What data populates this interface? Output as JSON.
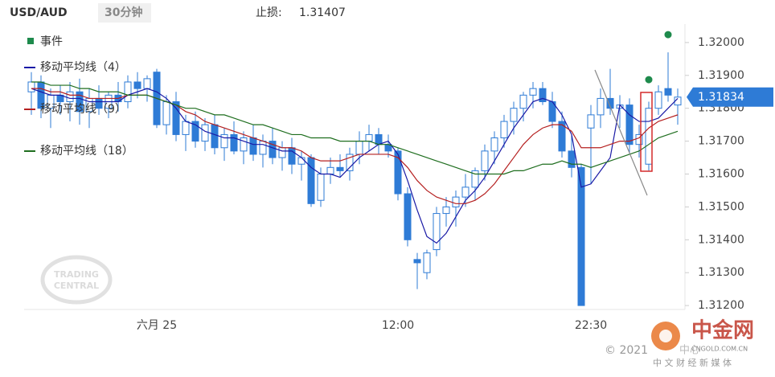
{
  "header": {
    "symbol": "USD/AUD",
    "timeframe": "30分钟",
    "stop_label": "止损:"
  },
  "watermarks": {
    "tc_line1": "TRADING",
    "tc_line2": "CENTRAL",
    "copyright": "© 2021",
    "copyright_tail": "中心",
    "brand": "中金网",
    "brand_url": "CNGOLD.COM.CN",
    "brand_slogan": "中 文 财 经 新 媒 体"
  },
  "chart_data": {
    "type": "candlestick",
    "stop_loss": 1.31407,
    "categories": [
      null,
      null,
      null,
      null,
      null,
      null,
      null,
      null,
      null,
      null,
      null,
      null,
      null,
      "六月 25",
      null,
      null,
      null,
      null,
      null,
      null,
      null,
      null,
      null,
      null,
      null,
      null,
      null,
      null,
      null,
      null,
      null,
      null,
      null,
      null,
      null,
      null,
      null,
      null,
      "12:00",
      null,
      null,
      null,
      null,
      null,
      null,
      null,
      null,
      null,
      null,
      null,
      null,
      null,
      null,
      null,
      null,
      null,
      null,
      null,
      "22:30",
      null,
      null,
      null,
      null,
      null,
      null,
      null,
      null,
      null
    ],
    "open": [
      1.3185,
      1.3188,
      1.318,
      1.3184,
      1.3182,
      1.3185,
      1.3179,
      1.3183,
      1.318,
      1.3184,
      1.3182,
      1.3188,
      1.3186,
      1.3191,
      1.3175,
      1.3182,
      1.3172,
      1.3176,
      1.317,
      1.3175,
      1.3168,
      1.3172,
      1.3167,
      1.3171,
      1.3166,
      1.317,
      1.3165,
      1.3168,
      1.3163,
      1.3165,
      1.3152,
      1.316,
      1.3162,
      1.3161,
      1.3166,
      1.317,
      1.3172,
      1.3169,
      1.3167,
      1.3154,
      1.3134,
      1.313,
      1.3137,
      1.3148,
      1.315,
      1.3153,
      1.3156,
      1.3161,
      1.3167,
      1.3171,
      1.3176,
      1.318,
      1.3184,
      1.3186,
      1.3182,
      1.3176,
      1.3167,
      1.3162,
      1.3174,
      1.3178,
      1.3183,
      1.318,
      1.3181,
      1.3169,
      1.3163,
      1.318,
      1.3186,
      1.3181
    ],
    "high": [
      1.3191,
      1.319,
      1.3186,
      1.3187,
      1.3188,
      1.3189,
      1.3186,
      1.3187,
      1.3185,
      1.3188,
      1.319,
      1.3191,
      1.319,
      1.3192,
      1.3184,
      1.3185,
      1.3178,
      1.3179,
      1.3177,
      1.3178,
      1.3174,
      1.3176,
      1.3173,
      1.3175,
      1.3172,
      1.3174,
      1.317,
      1.3171,
      1.3167,
      1.3166,
      1.3162,
      1.3165,
      1.3166,
      1.3168,
      1.3173,
      1.3175,
      1.3174,
      1.3172,
      1.3168,
      1.3156,
      1.3136,
      1.3137,
      1.315,
      1.3153,
      1.3155,
      1.316,
      1.3162,
      1.3169,
      1.3173,
      1.3178,
      1.3182,
      1.3185,
      1.3188,
      1.3188,
      1.3185,
      1.3179,
      1.3172,
      1.3163,
      1.3181,
      1.3186,
      1.3192,
      1.3184,
      1.3183,
      1.3175,
      1.3182,
      1.3187,
      1.3197,
      1.3186
    ],
    "low": [
      1.3178,
      1.3177,
      1.3174,
      1.3178,
      1.3176,
      1.3175,
      1.3174,
      1.3178,
      1.3177,
      1.3179,
      1.318,
      1.3183,
      1.3182,
      1.3174,
      1.3172,
      1.317,
      1.3167,
      1.3168,
      1.3167,
      1.3166,
      1.3164,
      1.3166,
      1.3163,
      1.3164,
      1.3162,
      1.3163,
      1.3161,
      1.316,
      1.3158,
      1.315,
      1.315,
      1.3157,
      1.3159,
      1.3158,
      1.3163,
      1.3167,
      1.3166,
      1.3165,
      1.3152,
      1.3138,
      1.3125,
      1.3128,
      1.3135,
      1.3144,
      1.3144,
      1.315,
      1.3152,
      1.3158,
      1.3163,
      1.3168,
      1.3172,
      1.3176,
      1.318,
      1.3181,
      1.3174,
      1.3165,
      1.3159,
      1.312,
      1.3157,
      1.3174,
      1.3178,
      1.3174,
      1.3166,
      1.3165,
      1.3161,
      1.3178,
      1.3182,
      1.3175
    ],
    "close": [
      1.3188,
      1.318,
      1.3184,
      1.3182,
      1.3185,
      1.3179,
      1.3183,
      1.318,
      1.3184,
      1.3182,
      1.3188,
      1.3186,
      1.3189,
      1.3175,
      1.3182,
      1.3172,
      1.3176,
      1.317,
      1.3175,
      1.3168,
      1.3172,
      1.3167,
      1.3171,
      1.3166,
      1.317,
      1.3165,
      1.3168,
      1.3163,
      1.3165,
      1.3151,
      1.316,
      1.3162,
      1.3161,
      1.3166,
      1.317,
      1.3172,
      1.3169,
      1.3167,
      1.3154,
      1.314,
      1.3133,
      1.3136,
      1.3148,
      1.315,
      1.3153,
      1.3156,
      1.3161,
      1.3167,
      1.3171,
      1.3176,
      1.318,
      1.3184,
      1.3186,
      1.3182,
      1.3176,
      1.3167,
      1.3162,
      1.312,
      1.3178,
      1.3183,
      1.318,
      1.3181,
      1.3169,
      1.3172,
      1.318,
      1.3185,
      1.3184,
      1.31834
    ],
    "up_color": "#ffffff",
    "down_color": "#2e7bd6",
    "edge_color": "#2e7bd6",
    "event_name": "事件",
    "event_color": "#1e8a4c",
    "events": [
      {
        "index": 64,
        "value": 1.31887
      },
      {
        "index": 66,
        "value": 1.32024
      }
    ],
    "series": [
      {
        "name": "移动平均线（4）",
        "color": "#1a1aa6",
        "values": [
          1.3186,
          1.3185,
          1.3184,
          1.3184,
          1.3183,
          1.3183,
          1.3182,
          1.3182,
          1.3182,
          1.3182,
          1.3184,
          1.3185,
          1.3186,
          1.3185,
          1.3183,
          1.318,
          1.3176,
          1.3175,
          1.3173,
          1.3172,
          1.3171,
          1.3171,
          1.317,
          1.3169,
          1.3169,
          1.3168,
          1.3167,
          1.3167,
          1.3165,
          1.3162,
          1.316,
          1.316,
          1.3159,
          1.3162,
          1.3165,
          1.3167,
          1.3169,
          1.317,
          1.3166,
          1.3158,
          1.3149,
          1.3141,
          1.3139,
          1.3142,
          1.3147,
          1.3152,
          1.3155,
          1.3159,
          1.3164,
          1.3169,
          1.3174,
          1.3178,
          1.3182,
          1.3183,
          1.3182,
          1.3178,
          1.3172,
          1.3156,
          1.3157,
          1.3161,
          1.3165,
          1.3181,
          1.3178,
          1.3176,
          1.3176,
          1.3177,
          1.318,
          1.3183
        ]
      },
      {
        "name": "移动平均线（9）",
        "color": "#b52020",
        "values": [
          1.3186,
          1.3186,
          1.3185,
          1.3185,
          1.3184,
          1.3184,
          1.3183,
          1.3183,
          1.3183,
          1.3183,
          1.3184,
          1.3184,
          1.3184,
          1.3183,
          1.3182,
          1.3181,
          1.3179,
          1.3178,
          1.3176,
          1.3175,
          1.3174,
          1.3173,
          1.3172,
          1.3171,
          1.317,
          1.3169,
          1.3168,
          1.3168,
          1.3167,
          1.3165,
          1.3164,
          1.3164,
          1.3164,
          1.3165,
          1.3166,
          1.3166,
          1.3166,
          1.3166,
          1.3165,
          1.3162,
          1.3158,
          1.3155,
          1.3153,
          1.3152,
          1.3151,
          1.3151,
          1.3152,
          1.3154,
          1.3157,
          1.3161,
          1.3165,
          1.3169,
          1.3172,
          1.3174,
          1.3175,
          1.3175,
          1.3173,
          1.3168,
          1.3168,
          1.3168,
          1.3169,
          1.317,
          1.317,
          1.3171,
          1.3174,
          1.3176,
          1.3177,
          1.3178
        ]
      },
      {
        "name": "移动平均线（18）",
        "color": "#1f6e1f",
        "values": [
          1.3188,
          1.3188,
          1.3187,
          1.3187,
          1.3187,
          1.3186,
          1.3186,
          1.3185,
          1.3185,
          1.3185,
          1.3184,
          1.3184,
          1.3184,
          1.3183,
          1.3182,
          1.3181,
          1.318,
          1.318,
          1.3179,
          1.3178,
          1.3178,
          1.3177,
          1.3176,
          1.3175,
          1.3175,
          1.3174,
          1.3173,
          1.3172,
          1.3172,
          1.3171,
          1.3171,
          1.3171,
          1.317,
          1.317,
          1.317,
          1.317,
          1.3169,
          1.3169,
          1.3168,
          1.3167,
          1.3166,
          1.3165,
          1.3164,
          1.3163,
          1.3162,
          1.3161,
          1.316,
          1.316,
          1.316,
          1.316,
          1.3161,
          1.3161,
          1.3162,
          1.3163,
          1.3163,
          1.3164,
          1.3163,
          1.3163,
          1.3162,
          1.3163,
          1.3164,
          1.3165,
          1.3166,
          1.3167,
          1.3169,
          1.3171,
          1.3172,
          1.3173
        ]
      }
    ],
    "ylim": [
      1.31188,
      1.32056
    ],
    "yticks": [
      {
        "value": 1.32,
        "label": "1.32000"
      },
      {
        "value": 1.319,
        "label": "1.31900"
      },
      {
        "value": 1.318,
        "label": "1.31800"
      },
      {
        "value": 1.317,
        "label": "1.31700"
      },
      {
        "value": 1.316,
        "label": "1.31600"
      },
      {
        "value": 1.315,
        "label": "1.31500"
      },
      {
        "value": 1.314,
        "label": "1.31400"
      },
      {
        "value": 1.313,
        "label": "1.31300"
      },
      {
        "value": 1.312,
        "label": "1.31200"
      }
    ]
  }
}
